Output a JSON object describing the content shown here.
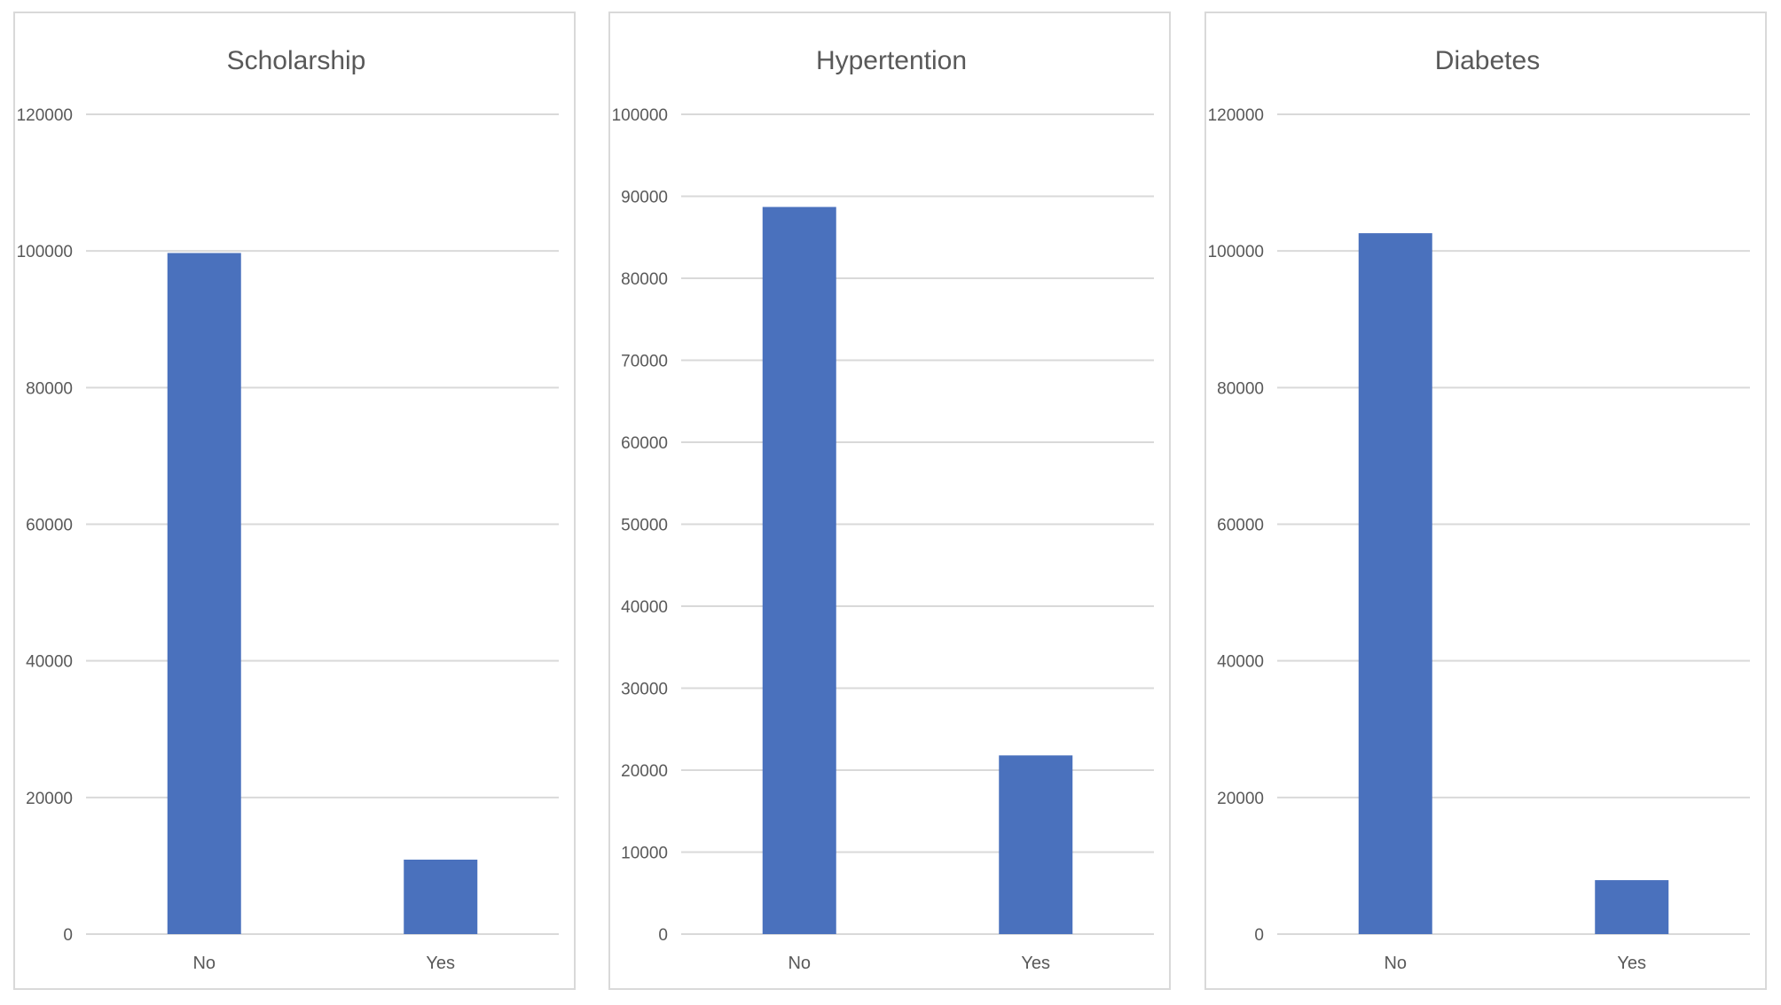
{
  "colors": {
    "bar": "#4a71bd",
    "grid": "#d9d9d9",
    "text": "#595959",
    "border": "#d9d9d9"
  },
  "chart_data": [
    {
      "type": "bar",
      "title": "Scholarship",
      "categories": [
        "No",
        "Yes"
      ],
      "values": [
        99700,
        10900
      ],
      "yticks": [
        "0",
        "20000",
        "40000",
        "60000",
        "80000",
        "100000",
        "120000"
      ],
      "ylim": [
        0,
        120000
      ],
      "xlabel": "",
      "ylabel": "",
      "grid": true,
      "legend": "none"
    },
    {
      "type": "bar",
      "title": "Hypertention",
      "categories": [
        "No",
        "Yes"
      ],
      "values": [
        88700,
        21800
      ],
      "yticks": [
        "0",
        "10000",
        "20000",
        "30000",
        "40000",
        "50000",
        "60000",
        "70000",
        "80000",
        "90000",
        "100000"
      ],
      "ylim": [
        0,
        100000
      ],
      "xlabel": "",
      "ylabel": "",
      "grid": true,
      "legend": "none"
    },
    {
      "type": "bar",
      "title": "Diabetes",
      "categories": [
        "No",
        "Yes"
      ],
      "values": [
        102600,
        7900
      ],
      "yticks": [
        "0",
        "20000",
        "40000",
        "60000",
        "80000",
        "100000",
        "120000"
      ],
      "ylim": [
        0,
        120000
      ],
      "xlabel": "",
      "ylabel": "",
      "grid": true,
      "legend": "none"
    }
  ]
}
